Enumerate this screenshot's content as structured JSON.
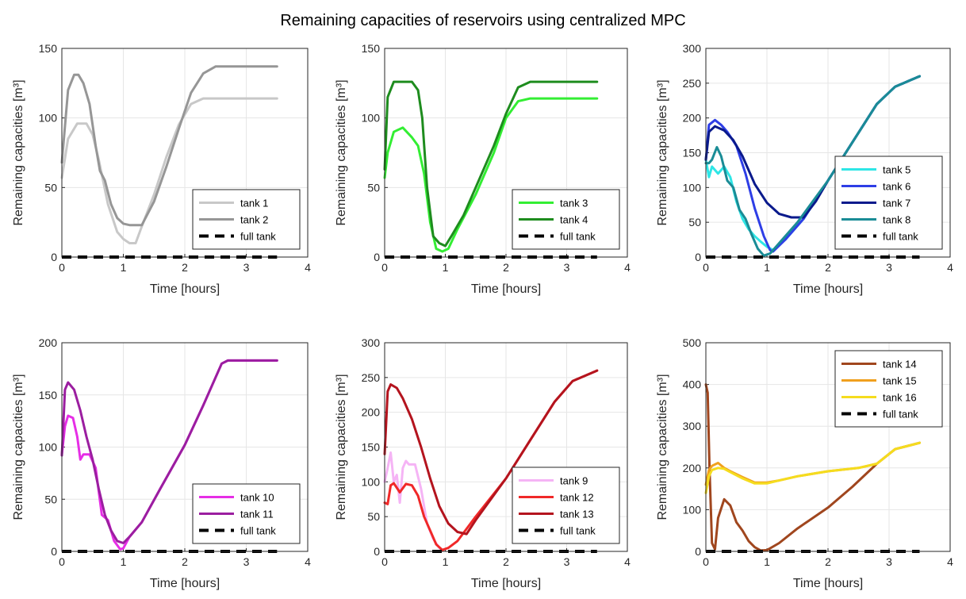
{
  "figure": {
    "title": "Remaining capacities of reservoirs using centralized MPC"
  },
  "chart_data": [
    {
      "type": "line",
      "xlabel": "Time [hours]",
      "ylabel": "Remaining capacities [m³]",
      "xlim": [
        0,
        4
      ],
      "ylim": [
        0,
        150
      ],
      "xticks": [
        "0",
        "1",
        "2",
        "3",
        "4"
      ],
      "yticks": [
        "0",
        "50",
        "100",
        "150"
      ],
      "grid": true,
      "legend_position": "bottom-right",
      "series": [
        {
          "name": "tank 1",
          "color": "#c8c8c8",
          "x": [
            0,
            0.1,
            0.25,
            0.4,
            0.5,
            0.6,
            0.75,
            0.9,
            1.0,
            1.1,
            1.2,
            1.3,
            1.5,
            1.7,
            1.9,
            2.1,
            2.3,
            2.5,
            3.5
          ],
          "y": [
            57,
            85,
            96,
            96,
            88,
            70,
            38,
            18,
            13,
            10,
            10,
            22,
            45,
            72,
            95,
            110,
            114,
            114,
            114
          ]
        },
        {
          "name": "tank 2",
          "color": "#969696",
          "x": [
            0,
            0.1,
            0.2,
            0.27,
            0.35,
            0.45,
            0.55,
            0.62,
            0.7,
            0.8,
            0.9,
            1.0,
            1.1,
            1.3,
            1.5,
            1.7,
            1.9,
            2.1,
            2.3,
            2.5,
            2.7,
            3.5
          ],
          "y": [
            68,
            120,
            131,
            131,
            125,
            110,
            80,
            62,
            55,
            38,
            28,
            24,
            23,
            23,
            40,
            65,
            92,
            118,
            132,
            137,
            137,
            137
          ]
        },
        {
          "name": "full tank",
          "color": "#000000",
          "dashed": true,
          "x": [
            0,
            3.5
          ],
          "y": [
            0,
            0
          ]
        }
      ]
    },
    {
      "type": "line",
      "xlabel": "Time [hours]",
      "ylabel": "Remaining capacities [m³]",
      "xlim": [
        0,
        4
      ],
      "ylim": [
        0,
        150
      ],
      "xticks": [
        "0",
        "1",
        "2",
        "3",
        "4"
      ],
      "yticks": [
        "0",
        "50",
        "100",
        "150"
      ],
      "grid": true,
      "legend_position": "bottom-right",
      "series": [
        {
          "name": "tank 3",
          "color": "#33ee33",
          "x": [
            0,
            0.05,
            0.15,
            0.3,
            0.45,
            0.55,
            0.65,
            0.75,
            0.85,
            0.95,
            1.05,
            1.2,
            1.5,
            1.8,
            2.0,
            2.2,
            2.4,
            3.5
          ],
          "y": [
            57,
            75,
            90,
            93,
            86,
            80,
            60,
            25,
            6,
            4,
            6,
            20,
            45,
            75,
            100,
            112,
            114,
            114
          ]
        },
        {
          "name": "tank 4",
          "color": "#1e8c1e",
          "x": [
            0,
            0.05,
            0.15,
            0.3,
            0.45,
            0.55,
            0.62,
            0.7,
            0.8,
            0.9,
            1.0,
            1.1,
            1.3,
            1.5,
            1.8,
            2.0,
            2.2,
            2.4,
            3.5
          ],
          "y": [
            63,
            115,
            126,
            126,
            126,
            120,
            100,
            50,
            15,
            10,
            8,
            15,
            30,
            50,
            80,
            103,
            122,
            126,
            126
          ]
        },
        {
          "name": "full tank",
          "color": "#000000",
          "dashed": true,
          "x": [
            0,
            3.5
          ],
          "y": [
            0,
            0
          ]
        }
      ]
    },
    {
      "type": "line",
      "xlabel": "Time [hours]",
      "ylabel": "Remaining capacities [m³]",
      "xlim": [
        0,
        4
      ],
      "ylim": [
        0,
        300
      ],
      "xticks": [
        "0",
        "1",
        "2",
        "3",
        "4"
      ],
      "yticks": [
        "0",
        "50",
        "100",
        "150",
        "200",
        "250",
        "300"
      ],
      "grid": true,
      "legend_position": "bottom-right",
      "series": [
        {
          "name": "tank 5",
          "color": "#2ee6e6",
          "x": [
            0,
            0.05,
            0.1,
            0.2,
            0.3,
            0.4,
            0.5,
            0.6,
            0.7,
            0.8,
            0.9,
            1.0,
            1.1,
            1.3,
            1.6,
            2.0,
            2.4,
            2.8,
            3.1,
            3.5
          ],
          "y": [
            140,
            115,
            130,
            120,
            130,
            115,
            80,
            55,
            40,
            30,
            22,
            15,
            10,
            25,
            55,
            110,
            165,
            220,
            245,
            260
          ]
        },
        {
          "name": "tank 6",
          "color": "#2e3ee6",
          "x": [
            0,
            0.05,
            0.15,
            0.25,
            0.35,
            0.5,
            0.65,
            0.8,
            0.95,
            1.05,
            1.1,
            1.3,
            1.6,
            2.0,
            2.4,
            2.8,
            3.1,
            3.5
          ],
          "y": [
            140,
            190,
            197,
            190,
            180,
            160,
            120,
            70,
            30,
            10,
            8,
            25,
            55,
            110,
            165,
            220,
            245,
            260
          ]
        },
        {
          "name": "tank 7",
          "color": "#0a1a8c",
          "x": [
            0,
            0.05,
            0.15,
            0.3,
            0.45,
            0.6,
            0.8,
            1.0,
            1.2,
            1.4,
            1.6,
            1.8,
            2.0,
            2.4,
            2.8,
            3.1,
            3.5
          ],
          "y": [
            140,
            180,
            188,
            182,
            168,
            145,
            105,
            78,
            62,
            57,
            57,
            80,
            110,
            165,
            220,
            245,
            260
          ]
        },
        {
          "name": "tank 8",
          "color": "#1a8c96",
          "x": [
            0,
            0.05,
            0.1,
            0.18,
            0.25,
            0.35,
            0.45,
            0.55,
            0.65,
            0.75,
            0.85,
            0.95,
            1.05,
            1.2,
            1.5,
            2.0,
            2.4,
            2.8,
            3.1,
            3.5
          ],
          "y": [
            135,
            135,
            140,
            158,
            145,
            110,
            100,
            68,
            55,
            32,
            12,
            2,
            5,
            20,
            50,
            110,
            165,
            220,
            245,
            260
          ]
        },
        {
          "name": "full tank",
          "color": "#000000",
          "dashed": true,
          "x": [
            0,
            3.5
          ],
          "y": [
            0,
            0
          ]
        }
      ]
    },
    {
      "type": "line",
      "xlabel": "Time [hours]",
      "ylabel": "Remaining capacities [m³]",
      "xlim": [
        0,
        4
      ],
      "ylim": [
        0,
        200
      ],
      "xticks": [
        "0",
        "1",
        "2",
        "3",
        "4"
      ],
      "yticks": [
        "0",
        "50",
        "100",
        "150",
        "200"
      ],
      "grid": true,
      "legend_position": "bottom-right",
      "series": [
        {
          "name": "tank 10",
          "color": "#e62ee6",
          "x": [
            0,
            0.05,
            0.1,
            0.18,
            0.25,
            0.3,
            0.35,
            0.45,
            0.55,
            0.65,
            0.75,
            0.85,
            0.95,
            1.0,
            1.1,
            1.3,
            1.6,
            2.0,
            2.3,
            2.6,
            2.7,
            3.5
          ],
          "y": [
            93,
            120,
            130,
            128,
            110,
            88,
            93,
            93,
            80,
            35,
            30,
            10,
            2,
            3,
            14,
            28,
            60,
            102,
            140,
            180,
            183,
            183
          ]
        },
        {
          "name": "tank 11",
          "color": "#9b1ea0",
          "x": [
            0,
            0.05,
            0.1,
            0.2,
            0.3,
            0.4,
            0.5,
            0.6,
            0.7,
            0.8,
            0.9,
            1.0,
            1.1,
            1.3,
            1.6,
            2.0,
            2.3,
            2.6,
            2.7,
            3.5
          ],
          "y": [
            92,
            155,
            162,
            155,
            135,
            110,
            88,
            60,
            35,
            20,
            10,
            8,
            14,
            28,
            60,
            102,
            140,
            180,
            183,
            183
          ]
        },
        {
          "name": "full tank",
          "color": "#000000",
          "dashed": true,
          "x": [
            0,
            3.5
          ],
          "y": [
            0,
            0
          ]
        }
      ]
    },
    {
      "type": "line",
      "xlabel": "Time [hours]",
      "ylabel": "Remaining capacities [m³]",
      "xlim": [
        0,
        4
      ],
      "ylim": [
        0,
        300
      ],
      "xticks": [
        "0",
        "1",
        "2",
        "3",
        "4"
      ],
      "yticks": [
        "0",
        "50",
        "100",
        "150",
        "200",
        "250",
        "300"
      ],
      "grid": true,
      "legend_position": "bottom-right",
      "series": [
        {
          "name": "tank 9",
          "color": "#f5b4f5",
          "x": [
            0,
            0.05,
            0.1,
            0.15,
            0.2,
            0.25,
            0.3,
            0.35,
            0.4,
            0.5,
            0.6,
            0.7,
            0.8,
            0.9,
            0.95
          ],
          "y": [
            100,
            120,
            142,
            100,
            110,
            70,
            120,
            130,
            125,
            125,
            90,
            40,
            18,
            5,
            2
          ]
        },
        {
          "name": "tank 12",
          "color": "#f02828",
          "x": [
            0,
            0.05,
            0.1,
            0.15,
            0.25,
            0.35,
            0.45,
            0.55,
            0.65,
            0.75,
            0.85,
            0.95,
            1.05,
            1.2,
            1.5,
            2.0,
            2.4,
            2.8,
            3.1,
            3.5
          ],
          "y": [
            70,
            68,
            95,
            98,
            85,
            97,
            95,
            80,
            50,
            30,
            10,
            2,
            5,
            15,
            50,
            105,
            160,
            215,
            245,
            260
          ]
        },
        {
          "name": "tank 13",
          "color": "#b4141e",
          "x": [
            0,
            0.05,
            0.1,
            0.2,
            0.3,
            0.45,
            0.6,
            0.75,
            0.9,
            1.05,
            1.2,
            1.35,
            1.5,
            2.0,
            2.4,
            2.8,
            3.1,
            3.5
          ],
          "y": [
            140,
            230,
            240,
            235,
            220,
            190,
            150,
            105,
            65,
            40,
            28,
            25,
            45,
            105,
            160,
            215,
            245,
            260
          ]
        },
        {
          "name": "full tank",
          "color": "#000000",
          "dashed": true,
          "x": [
            0,
            3.5
          ],
          "y": [
            0,
            0
          ]
        }
      ]
    },
    {
      "type": "line",
      "xlabel": "Time [hours]",
      "ylabel": "Remaining capacities [m³]",
      "xlim": [
        0,
        4
      ],
      "ylim": [
        0,
        500
      ],
      "xticks": [
        "0",
        "1",
        "2",
        "3",
        "4"
      ],
      "yticks": [
        "0",
        "100",
        "200",
        "300",
        "400",
        "500"
      ],
      "grid": true,
      "legend_position": "top-right",
      "series": [
        {
          "name": "tank 14",
          "color": "#a0461e",
          "x": [
            0,
            0.03,
            0.06,
            0.1,
            0.15,
            0.2,
            0.3,
            0.4,
            0.5,
            0.6,
            0.7,
            0.8,
            0.9,
            1.0,
            1.2,
            1.5,
            2.0,
            2.4,
            2.8,
            3.1,
            3.5
          ],
          "y": [
            400,
            380,
            200,
            20,
            5,
            80,
            125,
            110,
            70,
            50,
            25,
            10,
            2,
            3,
            20,
            55,
            105,
            155,
            210,
            245,
            260
          ]
        },
        {
          "name": "tank 15",
          "color": "#f0a01e",
          "x": [
            0,
            0.05,
            0.1,
            0.2,
            0.3,
            0.4,
            0.6,
            0.8,
            1.0,
            1.2,
            1.5,
            2.0,
            2.5,
            2.8,
            3.1,
            3.5
          ],
          "y": [
            160,
            195,
            205,
            212,
            200,
            192,
            178,
            165,
            165,
            170,
            180,
            192,
            200,
            210,
            245,
            260
          ]
        },
        {
          "name": "tank 16",
          "color": "#f5dc1e",
          "x": [
            0,
            0.05,
            0.1,
            0.2,
            0.3,
            0.4,
            0.6,
            0.8,
            1.0,
            1.2,
            1.5,
            2.0,
            2.5,
            2.8,
            3.1,
            3.5
          ],
          "y": [
            140,
            180,
            195,
            200,
            198,
            190,
            175,
            163,
            163,
            170,
            180,
            192,
            200,
            210,
            245,
            260
          ]
        },
        {
          "name": "full tank",
          "color": "#000000",
          "dashed": true,
          "x": [
            0,
            3.5
          ],
          "y": [
            0,
            0
          ]
        }
      ]
    }
  ]
}
